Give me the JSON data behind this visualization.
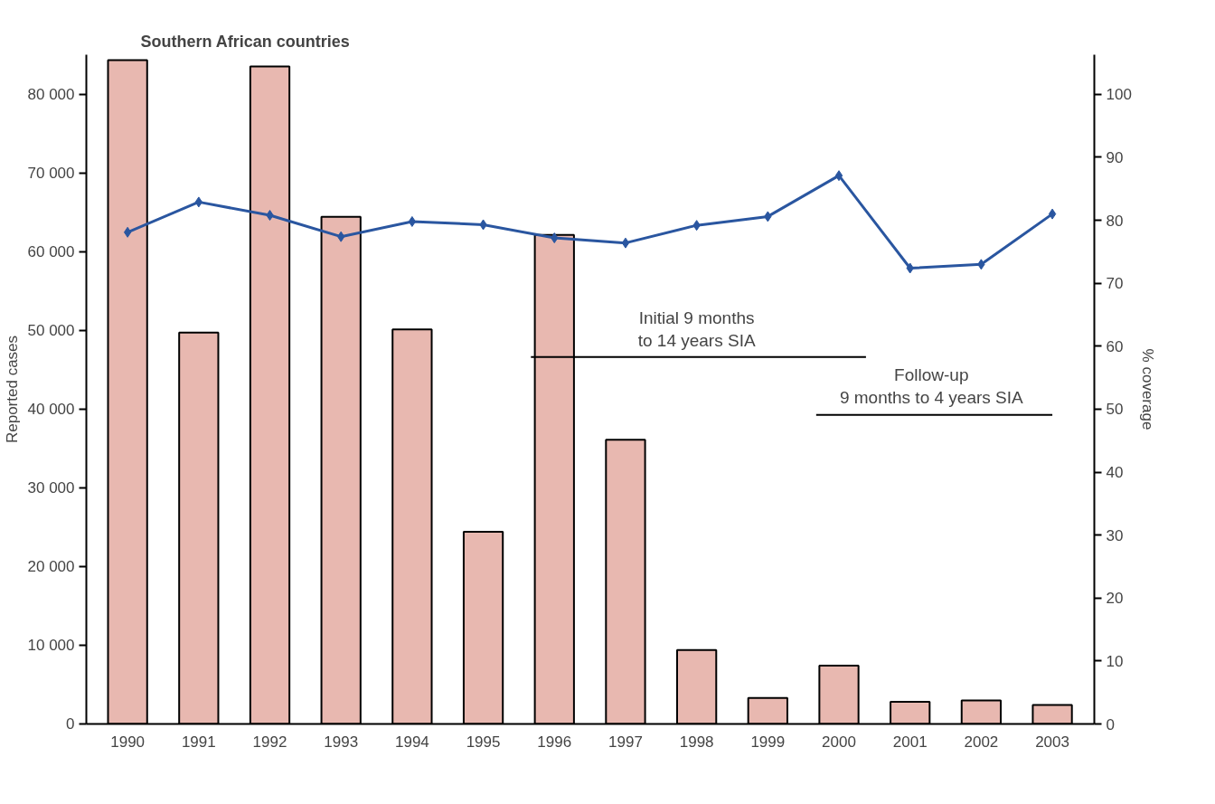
{
  "chart_data": {
    "type": "bar",
    "title": "Southern African countries",
    "ylabel": "Reported cases",
    "y2label": "% coverage",
    "x": [
      1990,
      1991,
      1992,
      1993,
      1994,
      1995,
      1996,
      1997,
      1998,
      1999,
      2000,
      2001,
      2002,
      2003
    ],
    "xlim": [
      1989.42,
      2003.59
    ],
    "xticks": [
      1990,
      1991,
      1992,
      1993,
      1994,
      1995,
      1996,
      1997,
      1998,
      1999,
      2000,
      2001,
      2002,
      2003
    ],
    "ylim": [
      0,
      85000
    ],
    "yticks": [
      {
        "value": 0,
        "label": "0"
      },
      {
        "value": 10000,
        "label": "10 000"
      },
      {
        "value": 20000,
        "label": "20 000"
      },
      {
        "value": 30000,
        "label": "30 000"
      },
      {
        "value": 40000,
        "label": "40 000"
      },
      {
        "value": 50000,
        "label": "50 000"
      },
      {
        "value": 60000,
        "label": "60 000"
      },
      {
        "value": 70000,
        "label": "70 000"
      },
      {
        "value": 80000,
        "label": "80 000"
      }
    ],
    "y2lim": [
      0,
      106.3
    ],
    "y2ticks": [
      0,
      10,
      20,
      30,
      40,
      50,
      60,
      70,
      80,
      90,
      100
    ],
    "series": [
      {
        "color": "#e8b8b0",
        "values": [
          84300,
          49700,
          83500,
          64400,
          50100,
          24400,
          62100,
          36100,
          9400,
          3300,
          7400,
          2800,
          3000,
          2400
        ]
      },
      {
        "type": "line",
        "axis": "y2",
        "color": "#2a56a0",
        "marker": "diamond",
        "values": [
          78.1,
          82.9,
          80.8,
          77.4,
          79.8,
          79.3,
          77.2,
          76.4,
          79.2,
          80.6,
          87.1,
          72.4,
          73.0,
          81.0
        ]
      },
      {
        "type": "line",
        "axis": "y2",
        "color": "#000000",
        "x": [
          1995.67,
          2000.38
        ],
        "values": [
          58.3,
          58.3
        ]
      },
      {
        "type": "line",
        "axis": "y2",
        "color": "#000000",
        "x": [
          1999.68,
          2003.0
        ],
        "values": [
          49.1,
          49.1
        ]
      }
    ],
    "annotations": [
      {
        "text": "Initial 9 months\nto 14 years SIA",
        "x": 1998.0,
        "y": 46600
      },
      {
        "text": "Follow-up\n9 months to 4 years SIA",
        "x": 2001.3,
        "y": 39300
      }
    ],
    "grid": false
  }
}
